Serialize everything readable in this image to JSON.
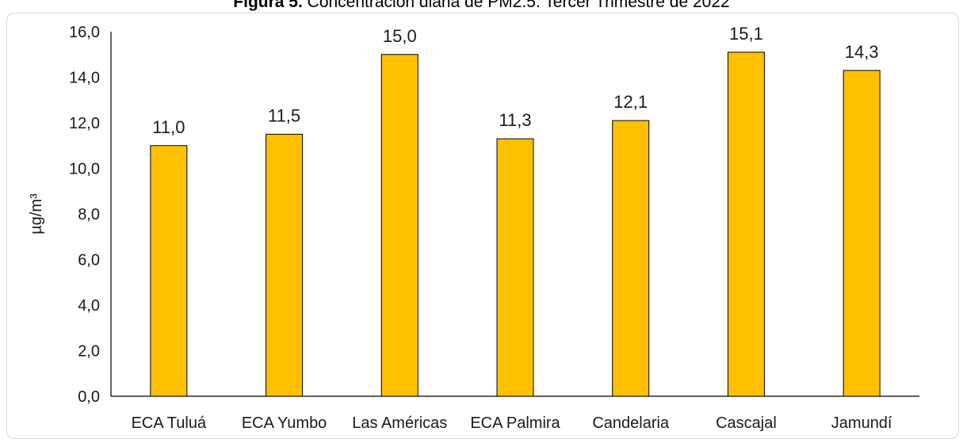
{
  "caption": {
    "lead": "Figura 5.",
    "text": "Concentración diaria de PM2.5. Tercer Trimestre de 2022"
  },
  "chart_data": {
    "type": "bar",
    "categories": [
      "ECA Tuluá",
      "ECA Yumbo",
      "Las Américas",
      "ECA Palmira",
      "Candelaria",
      "Cascajal",
      "Jamundí"
    ],
    "values": [
      11.0,
      11.5,
      15.0,
      11.3,
      12.1,
      15.1,
      14.3
    ],
    "data_labels": [
      "11,0",
      "11,5",
      "15,0",
      "11,3",
      "12,1",
      "15,1",
      "14,3"
    ],
    "y_ticks": [
      "0,0",
      "2,0",
      "4,0",
      "6,0",
      "8,0",
      "10,0",
      "12,0",
      "14,0",
      "16,0"
    ],
    "ylabel": "µg/m³",
    "xlabel": "",
    "ylim": [
      0,
      16
    ],
    "grid": false,
    "legend": "none",
    "bar_color": "#FFC000",
    "bar_edge_color": "#000000"
  }
}
